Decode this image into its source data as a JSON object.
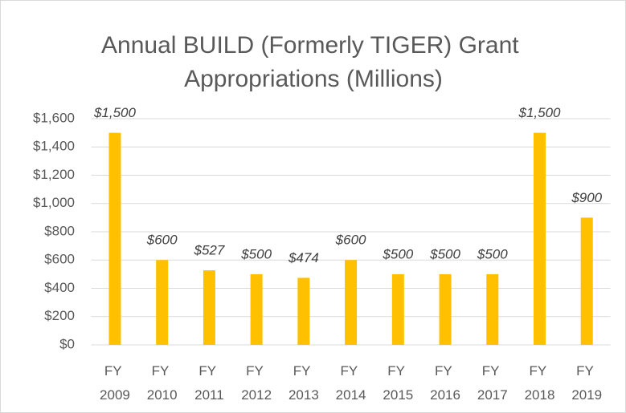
{
  "chart_data": {
    "type": "bar",
    "title": "Annual BUILD (Formerly TIGER) Grant Appropriations (Millions)",
    "categories": [
      "FY 2009",
      "FY 2010",
      "FY 2011",
      "FY 2012",
      "FY 2013",
      "FY 2014",
      "FY 2015",
      "FY 2016",
      "FY 2017",
      "FY 2018",
      "FY 2019"
    ],
    "values": [
      1500,
      600,
      527,
      500,
      474,
      600,
      500,
      500,
      500,
      1500,
      900
    ],
    "value_labels": [
      "$1,500",
      "$600",
      "$527",
      "$500",
      "$474",
      "$600",
      "$500",
      "$500",
      "$500",
      "$1,500",
      "$900"
    ],
    "color": "#ffc000",
    "ylim": [
      0,
      1600
    ],
    "yticks": [
      {
        "value": 0,
        "label": "$0"
      },
      {
        "value": 200,
        "label": "$200"
      },
      {
        "value": 400,
        "label": "$400"
      },
      {
        "value": 600,
        "label": "$600"
      },
      {
        "value": 800,
        "label": "$800"
      },
      {
        "value": 1000,
        "label": "$1,000"
      },
      {
        "value": 1200,
        "label": "$1,200"
      },
      {
        "value": 1400,
        "label": "$1,400"
      },
      {
        "value": 1600,
        "label": "$1,600"
      }
    ],
    "grid": true
  }
}
